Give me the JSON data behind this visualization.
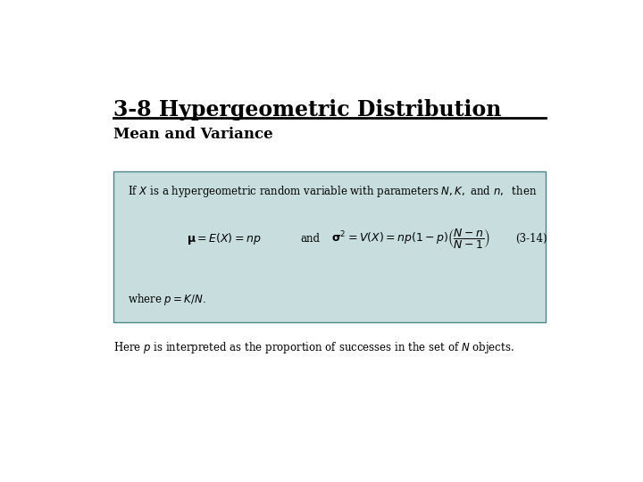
{
  "title": "3-8 Hypergeometric Distribution",
  "subtitle": "Mean and Variance",
  "box_bg_color": "#c8dede",
  "box_edge_color": "#4a8888",
  "title_fontsize": 17,
  "subtitle_fontsize": 12,
  "body_fontsize": 8.5,
  "background_color": "#ffffff",
  "line_color": "#000000",
  "box_text_line1": "If $X$ is a hypergeometric random variable with parameters $N, K,$ and $n,$  then",
  "box_text_line3": "where $p = K/N.$",
  "footer_text": "Here $p$ is interpreted as the proportion of successes in the set of $N$ objects."
}
